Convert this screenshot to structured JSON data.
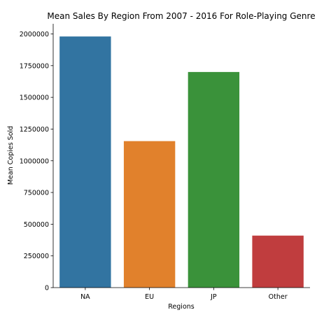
{
  "chart_data": {
    "type": "bar",
    "title": "Mean Sales By Region From 2007 - 2016 For Role-Playing Genre",
    "xlabel": "Regions",
    "ylabel": "Mean Copies Sold",
    "categories": [
      "NA",
      "EU",
      "JP",
      "Other"
    ],
    "values": [
      1980000,
      1155000,
      1700000,
      410000
    ],
    "colors": [
      "#3274a1",
      "#e1812c",
      "#3a923a",
      "#c03d3e"
    ],
    "ylim": [
      0,
      2080000
    ],
    "yticks": [
      0,
      250000,
      500000,
      750000,
      1000000,
      1250000,
      1500000,
      1750000,
      2000000
    ],
    "grid": false,
    "legend": false
  }
}
